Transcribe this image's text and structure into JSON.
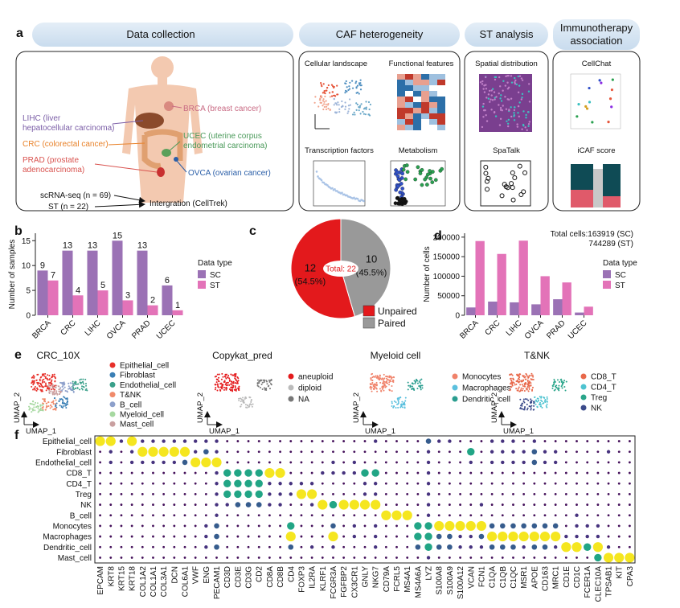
{
  "panel_labels": {
    "a": "a",
    "b": "b",
    "c": "c",
    "d": "d",
    "e": "e",
    "f": "f"
  },
  "data_collection": {
    "header": "Data collection",
    "cancers": [
      {
        "lines": [
          "LIHC (liver",
          "hepatocellular carcinoma)"
        ],
        "color": "#7b5ea7"
      },
      {
        "lines": [
          "CRC (colorectal cancer)"
        ],
        "color": "#e8822a"
      },
      {
        "lines": [
          "PRAD (prostate",
          "adenocarcinoma)"
        ],
        "color": "#d9534f"
      },
      {
        "lines": [
          "BRCA (breast cancer)"
        ],
        "color": "#c96b84"
      },
      {
        "lines": [
          "UCEC (uterine corpus",
          "endometrial carcinoma)"
        ],
        "color": "#4a9a5a"
      },
      {
        "lines": [
          "OVCA (ovarian cancer)"
        ],
        "color": "#2b5fa8"
      }
    ],
    "inputs": [
      "scRNA-seq (n = 69)",
      "ST (n = 22)"
    ],
    "integration": "Intergration (CellTrek)"
  },
  "caf_heterogeneity": {
    "header": "CAF heterogeneity",
    "panels": [
      "Cellular landscape",
      "Functional features",
      "Transcription factors",
      "Metabolism"
    ]
  },
  "st_analysis": {
    "header": "ST analysis",
    "panels": [
      "Spatial distribution",
      "SpaTalk"
    ]
  },
  "immunotherapy": {
    "header": [
      "Immunotherapy",
      "association"
    ],
    "panels": [
      "CellChat",
      "iCAF score"
    ]
  },
  "umaps": [
    {
      "title": "CRC_10X",
      "x_label": "UMAP_1",
      "y_label": "UMAP_2",
      "legend": [
        {
          "name": "Epithelial_cell",
          "color": "#e7302a"
        },
        {
          "name": "Fibroblast",
          "color": "#3a7fb5"
        },
        {
          "name": "Endothelial_cell",
          "color": "#3aa08a"
        },
        {
          "name": "T&NK",
          "color": "#f08a6a"
        },
        {
          "name": "B_cell",
          "color": "#8da0cb"
        },
        {
          "name": "Myeloid_cell",
          "color": "#a6d8a0"
        },
        {
          "name": "Mast_cell",
          "color": "#c9a0a0"
        }
      ]
    },
    {
      "title": "Copykat_pred",
      "x_label": "UMAP_1",
      "y_label": "UMAP_2",
      "legend": [
        {
          "name": "aneuploid",
          "color": "#e41a1c"
        },
        {
          "name": "diploid",
          "color": "#bbbbbb"
        },
        {
          "name": "NA",
          "color": "#777777"
        }
      ]
    },
    {
      "title": "Myeloid cell",
      "x_label": "UMAP_1",
      "y_label": "UMAP_2",
      "legend": [
        {
          "name": "Monocytes",
          "color": "#f0826a"
        },
        {
          "name": "Macrophages",
          "color": "#5bc0de"
        },
        {
          "name": "Dendritic_cell",
          "color": "#2a9d8f"
        }
      ]
    },
    {
      "title": "T&NK",
      "x_label": "UMAP_1",
      "y_label": "UMAP_2",
      "legend": [
        {
          "name": "CD8_T",
          "color": "#e8684a"
        },
        {
          "name": "CD4_T",
          "color": "#4ec3d0"
        },
        {
          "name": "Treg",
          "color": "#2aa58a"
        },
        {
          "name": "NK",
          "color": "#3b4a8a"
        }
      ]
    }
  ],
  "chart_data": [
    {
      "type": "bar",
      "y_label": "Number of samples",
      "categories": [
        "BRCA",
        "CRC",
        "LIHC",
        "OVCA",
        "PRAD",
        "UCEC"
      ],
      "series": [
        {
          "name": "SC",
          "color": "#9b72b5",
          "values": [
            9,
            13,
            13,
            15,
            13,
            6
          ]
        },
        {
          "name": "ST",
          "color": "#e373b8",
          "values": [
            7,
            4,
            5,
            3,
            2,
            1
          ]
        }
      ],
      "ylim": [
        0,
        16.5
      ],
      "yticks": [
        0,
        5,
        10,
        15
      ],
      "legend_title": "Data type",
      "data_labels": true
    },
    {
      "type": "pie",
      "categories": [
        "Unpaired",
        "Paired"
      ],
      "values": [
        12,
        10
      ],
      "percent_labels": [
        "(54.5%)",
        "(45.5%)"
      ],
      "colors": [
        "#e3191c",
        "#999999"
      ],
      "center_label": "Total: 22"
    },
    {
      "type": "bar",
      "y_label": "Number of cells",
      "categories": [
        "BRCA",
        "CRC",
        "LIHC",
        "OVCA",
        "PRAD",
        "UCEC"
      ],
      "series": [
        {
          "name": "SC",
          "color": "#9b72b5",
          "values": [
            20000,
            35000,
            33000,
            28000,
            41000,
            7000
          ]
        },
        {
          "name": "ST",
          "color": "#e373b8",
          "values": [
            190000,
            157000,
            191000,
            100000,
            84000,
            22000
          ]
        }
      ],
      "ylim": [
        0,
        210000
      ],
      "yticks": [
        0,
        50000,
        100000,
        150000,
        200000
      ],
      "legend_title": "Data type",
      "data_labels": false,
      "annotation": [
        "Total cells:163919 (SC)",
        "744289 (ST)"
      ]
    },
    {
      "type": "dot",
      "rows": [
        "Epithelial_cell",
        "Fibroblast",
        "Endothelial_cell",
        "CD8_T",
        "CD4_T",
        "Treg",
        "NK",
        "B_cell",
        "Monocytes",
        "Macrophages",
        "Dendritic_cell",
        "Mast_cell"
      ],
      "columns": [
        "EPCAM",
        "KRT8",
        "KRT15",
        "KRT18",
        "COL1A2",
        "COL1A1",
        "COL3A1",
        "DCN",
        "COL6A1",
        "VWF",
        "ENG",
        "PECAM1",
        "CD3D",
        "CD3E",
        "CD3G",
        "CD2",
        "CD8A",
        "CD8B",
        "CD4",
        "FOXP3",
        "IL2RA",
        "KLRF1",
        "FCGR3A",
        "FGFBP2",
        "CX3CR1",
        "GNLY",
        "NKG7",
        "CD79A",
        "FCRL5",
        "MS4A1",
        "MS4A6A",
        "LYZ",
        "S100A8",
        "S100A9",
        "S100A12",
        "VCAN",
        "FCN1",
        "C1QA",
        "C1QB",
        "C1QC",
        "MSR1",
        "APOE",
        "CD163",
        "MRC1",
        "CD1E",
        "CD1C",
        "FCER1A",
        "CLEC10A",
        "TPSAB1",
        "KIT",
        "CPA3"
      ],
      "palette": [
        "#44105a",
        "#46327e",
        "#365c8d",
        "#21a585",
        "#f5e61f"
      ],
      "values": [
        [
          4,
          4,
          1,
          4,
          1,
          1,
          1,
          1,
          1,
          1,
          1,
          1,
          0,
          0,
          0,
          0,
          0,
          0,
          0,
          0,
          0,
          0,
          0,
          0,
          0,
          0,
          1,
          0,
          0,
          0,
          0,
          2,
          1,
          1,
          0,
          0,
          0,
          1,
          1,
          1,
          0,
          1,
          0,
          0,
          0,
          0,
          0,
          0,
          0,
          0,
          0
        ],
        [
          0,
          1,
          0,
          1,
          4,
          4,
          4,
          4,
          4,
          1,
          2,
          1,
          0,
          0,
          0,
          0,
          0,
          0,
          0,
          0,
          0,
          0,
          0,
          0,
          0,
          0,
          0,
          0,
          0,
          0,
          0,
          1,
          0,
          0,
          0,
          3,
          0,
          1,
          1,
          1,
          1,
          2,
          1,
          1,
          0,
          0,
          0,
          0,
          1,
          0,
          0
        ],
        [
          0,
          1,
          0,
          1,
          1,
          1,
          1,
          1,
          2,
          4,
          4,
          4,
          0,
          0,
          0,
          0,
          0,
          0,
          0,
          0,
          0,
          0,
          1,
          0,
          1,
          0,
          0,
          0,
          0,
          0,
          0,
          1,
          0,
          0,
          0,
          1,
          0,
          1,
          1,
          1,
          1,
          2,
          1,
          1,
          0,
          0,
          0,
          0,
          0,
          0,
          0
        ],
        [
          0,
          0,
          0,
          0,
          0,
          0,
          0,
          0,
          0,
          0,
          0,
          1,
          3,
          3,
          3,
          3,
          4,
          4,
          0,
          0,
          0,
          1,
          1,
          1,
          1,
          3,
          3,
          0,
          0,
          0,
          0,
          1,
          0,
          0,
          0,
          0,
          0,
          0,
          0,
          0,
          0,
          0,
          0,
          0,
          0,
          0,
          0,
          0,
          0,
          0,
          0
        ],
        [
          0,
          0,
          0,
          0,
          0,
          0,
          0,
          0,
          0,
          0,
          0,
          1,
          3,
          3,
          3,
          3,
          1,
          1,
          1,
          1,
          1,
          0,
          0,
          0,
          0,
          1,
          1,
          0,
          0,
          0,
          0,
          1,
          0,
          0,
          0,
          0,
          0,
          0,
          0,
          0,
          0,
          0,
          0,
          0,
          0,
          0,
          0,
          0,
          0,
          0,
          0
        ],
        [
          0,
          0,
          0,
          0,
          0,
          0,
          0,
          0,
          0,
          0,
          0,
          1,
          3,
          3,
          3,
          3,
          1,
          1,
          1,
          4,
          4,
          0,
          0,
          0,
          0,
          1,
          1,
          0,
          0,
          0,
          0,
          1,
          0,
          0,
          0,
          0,
          0,
          0,
          0,
          0,
          0,
          0,
          0,
          0,
          0,
          0,
          0,
          0,
          0,
          0,
          0
        ],
        [
          0,
          0,
          0,
          0,
          0,
          0,
          0,
          0,
          0,
          0,
          0,
          1,
          1,
          2,
          2,
          2,
          1,
          1,
          0,
          0,
          1,
          4,
          3,
          4,
          4,
          4,
          4,
          0,
          0,
          0,
          0,
          1,
          0,
          0,
          0,
          0,
          1,
          0,
          0,
          0,
          0,
          0,
          0,
          0,
          0,
          0,
          0,
          0,
          0,
          0,
          0
        ],
        [
          0,
          0,
          0,
          0,
          0,
          0,
          0,
          0,
          0,
          0,
          0,
          1,
          0,
          0,
          0,
          0,
          0,
          0,
          0,
          0,
          0,
          0,
          0,
          0,
          0,
          0,
          0,
          4,
          4,
          4,
          0,
          1,
          0,
          0,
          0,
          0,
          0,
          0,
          0,
          0,
          0,
          0,
          0,
          0,
          0,
          1,
          0,
          0,
          0,
          0,
          0
        ],
        [
          0,
          0,
          0,
          0,
          0,
          0,
          0,
          0,
          0,
          0,
          1,
          2,
          0,
          0,
          0,
          0,
          0,
          0,
          3,
          0,
          0,
          0,
          2,
          0,
          1,
          0,
          1,
          0,
          0,
          0,
          3,
          3,
          4,
          4,
          4,
          4,
          4,
          2,
          2,
          2,
          2,
          2,
          2,
          2,
          0,
          1,
          1,
          1,
          0,
          0,
          0
        ],
        [
          0,
          0,
          0,
          0,
          0,
          0,
          0,
          0,
          0,
          0,
          1,
          2,
          0,
          0,
          0,
          0,
          0,
          0,
          4,
          0,
          0,
          0,
          4,
          0,
          1,
          0,
          1,
          0,
          0,
          0,
          3,
          3,
          2,
          2,
          1,
          1,
          2,
          4,
          4,
          4,
          4,
          4,
          4,
          4,
          1,
          1,
          1,
          1,
          0,
          0,
          0
        ],
        [
          0,
          0,
          0,
          0,
          0,
          0,
          0,
          0,
          0,
          0,
          1,
          2,
          0,
          0,
          0,
          0,
          0,
          0,
          2,
          0,
          1,
          0,
          1,
          0,
          0,
          0,
          1,
          0,
          0,
          0,
          2,
          3,
          2,
          2,
          1,
          1,
          1,
          2,
          2,
          2,
          1,
          2,
          2,
          1,
          4,
          4,
          3,
          4,
          1,
          0,
          0
        ],
        [
          0,
          0,
          0,
          0,
          0,
          0,
          0,
          0,
          0,
          0,
          0,
          0,
          0,
          0,
          0,
          0,
          0,
          0,
          0,
          0,
          0,
          0,
          0,
          0,
          0,
          0,
          0,
          0,
          0,
          0,
          0,
          1,
          0,
          0,
          0,
          0,
          0,
          0,
          0,
          0,
          0,
          0,
          0,
          0,
          0,
          0,
          0,
          3,
          4,
          4,
          4
        ]
      ]
    }
  ]
}
